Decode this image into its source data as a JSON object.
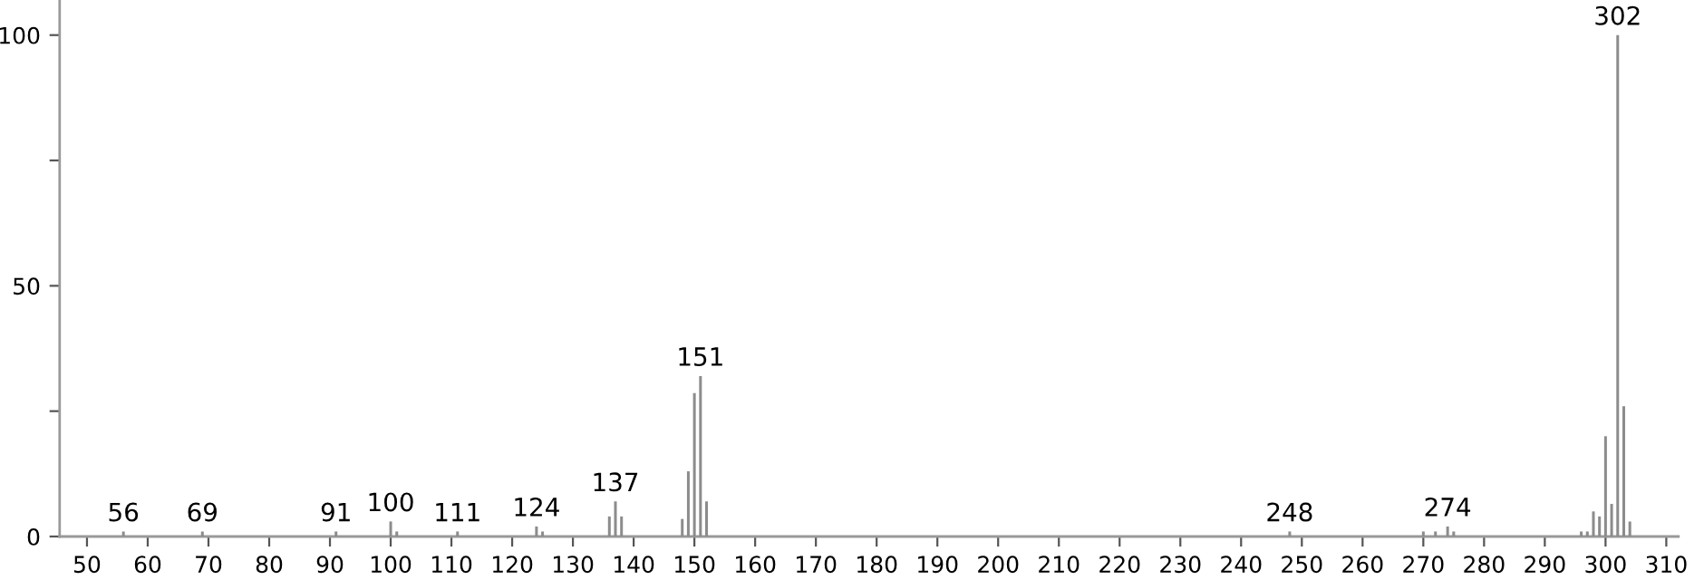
{
  "chart_data": {
    "type": "bar",
    "x": [
      56,
      69,
      91,
      100,
      101,
      111,
      124,
      125,
      136,
      137,
      138,
      148,
      149,
      150,
      151,
      152,
      248,
      270,
      272,
      274,
      275,
      296,
      297,
      298,
      299,
      300,
      301,
      302,
      303,
      304
    ],
    "values": [
      1,
      1,
      1,
      3,
      1,
      1,
      2,
      1,
      4,
      7,
      4,
      3.5,
      13,
      28.6,
      32,
      7,
      1,
      1,
      1,
      2,
      1,
      1,
      1,
      5,
      4,
      20,
      6.5,
      100,
      26,
      3
    ],
    "color": "#8c8c8c",
    "annotations": [
      {
        "text": "56",
        "x": 56,
        "y": 1
      },
      {
        "text": "69",
        "x": 69,
        "y": 1
      },
      {
        "text": "91",
        "x": 91,
        "y": 1
      },
      {
        "text": "100",
        "x": 100,
        "y": 3
      },
      {
        "text": "111",
        "x": 111,
        "y": 1
      },
      {
        "text": "124",
        "x": 124,
        "y": 2
      },
      {
        "text": "137",
        "x": 137,
        "y": 7
      },
      {
        "text": "151",
        "x": 151,
        "y": 32
      },
      {
        "text": "248",
        "x": 248,
        "y": 1
      },
      {
        "text": "274",
        "x": 274,
        "y": 2
      },
      {
        "text": "302",
        "x": 302,
        "y": 100
      }
    ],
    "xlim": [
      45.5,
      312
    ],
    "xticks": [
      50,
      60,
      70,
      80,
      90,
      100,
      110,
      120,
      130,
      140,
      150,
      160,
      170,
      180,
      190,
      200,
      210,
      220,
      230,
      240,
      250,
      260,
      270,
      280,
      290,
      300,
      310
    ],
    "ylim": [
      0,
      107
    ],
    "yticks": [
      0,
      {
        "value": 25,
        "label": null
      },
      50,
      {
        "value": 75,
        "label": null
      },
      100
    ],
    "grid": false
  }
}
